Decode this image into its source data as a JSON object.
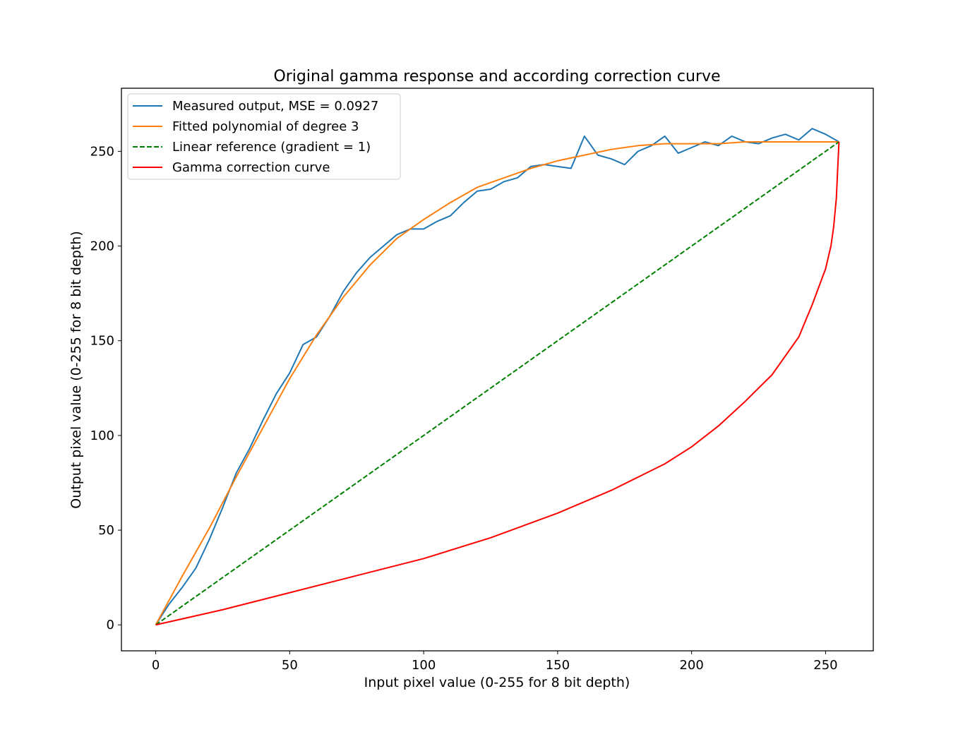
{
  "chart_data": {
    "type": "line",
    "title": "Original gamma response and according correction curve",
    "xlabel": "Input pixel value (0-255 for 8 bit depth)",
    "ylabel": "Output pixel value (0-255 for 8 bit depth)",
    "xlim": [
      -12.8,
      267.8
    ],
    "ylim": [
      -13.7,
      283.3
    ],
    "xticks": [
      0,
      50,
      100,
      150,
      200,
      250
    ],
    "yticks": [
      0,
      50,
      100,
      150,
      200,
      250
    ],
    "grid": false,
    "legend_position": "top-left",
    "series": [
      {
        "name": "Measured output, MSE = 0.0927",
        "color": "#1f77b4",
        "style": "solid",
        "x": [
          0,
          5,
          10,
          15,
          20,
          25,
          30,
          35,
          40,
          45,
          50,
          55,
          60,
          65,
          70,
          75,
          80,
          85,
          90,
          95,
          100,
          105,
          110,
          115,
          120,
          125,
          130,
          135,
          140,
          145,
          150,
          155,
          160,
          165,
          170,
          175,
          180,
          185,
          190,
          195,
          200,
          205,
          210,
          215,
          220,
          225,
          230,
          235,
          240,
          245,
          250,
          255
        ],
        "y": [
          0,
          11,
          20,
          30,
          45,
          62,
          80,
          93,
          108,
          122,
          133,
          148,
          152,
          163,
          176,
          186,
          194,
          200,
          206,
          209,
          209,
          213,
          216,
          223,
          229,
          230,
          234,
          236,
          242,
          243,
          242,
          241,
          258,
          248,
          246,
          243,
          250,
          253,
          258,
          249,
          252,
          255,
          253,
          258,
          255,
          254,
          257,
          259,
          256,
          262,
          259,
          255
        ]
      },
      {
        "name": "Fitted polynomial of degree 3",
        "color": "#ff7f0e",
        "style": "solid",
        "x": [
          0,
          10,
          20,
          30,
          40,
          50,
          60,
          70,
          80,
          90,
          100,
          110,
          120,
          130,
          140,
          150,
          160,
          170,
          180,
          190,
          200,
          210,
          220,
          230,
          240,
          250,
          255
        ],
        "y": [
          0,
          26,
          51,
          78,
          104,
          130,
          153,
          173,
          190,
          204,
          214,
          223,
          231,
          236,
          241,
          245,
          248,
          251,
          253,
          254,
          254,
          254,
          255,
          255,
          255,
          255,
          255
        ]
      },
      {
        "name": "Linear reference (gradient = 1)",
        "color": "#008000",
        "style": "dashed",
        "x": [
          0,
          255
        ],
        "y": [
          0,
          255
        ]
      },
      {
        "name": "Gamma correction curve",
        "color": "#ff0000",
        "style": "solid",
        "x": [
          0,
          25,
          50,
          75,
          100,
          125,
          150,
          170,
          190,
          200,
          210,
          220,
          230,
          240,
          245,
          250,
          252,
          253,
          254,
          254.5,
          255
        ],
        "y": [
          0,
          8,
          17,
          26,
          35,
          46,
          59,
          71,
          85,
          94,
          105,
          118,
          132,
          152,
          169,
          188,
          200,
          210,
          225,
          240,
          255
        ]
      }
    ]
  }
}
